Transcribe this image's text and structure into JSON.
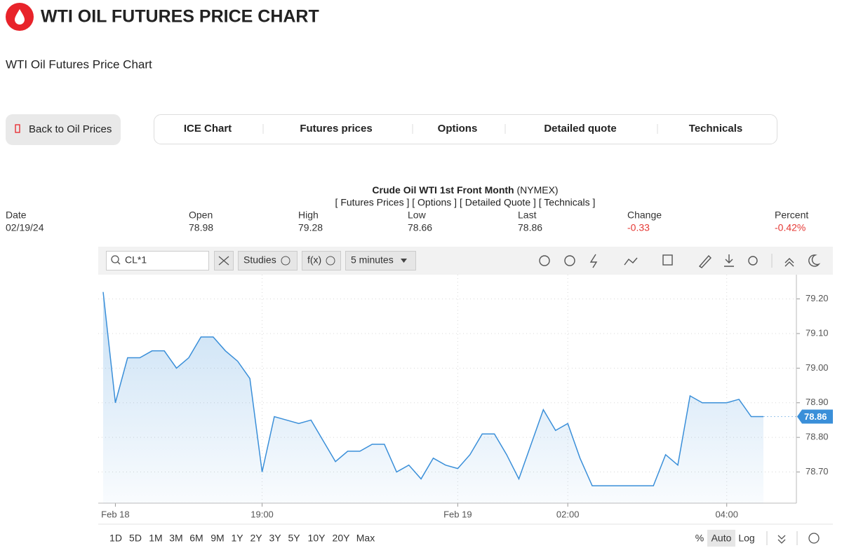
{
  "header": {
    "title": "WTI OIL FUTURES PRICE CHART",
    "subtitle": "WTI Oil Futures Price Chart"
  },
  "nav": {
    "back": "Back to Oil Prices",
    "tabs": [
      "ICE Chart",
      "Futures prices",
      "Options",
      "Detailed quote",
      "Technicals"
    ]
  },
  "quote": {
    "title": "Crude Oil WTI 1st Front Month",
    "exchange": "(NYMEX)",
    "links": "[ Futures Prices ] [ Options ] [ Detailed Quote ] [ Technicals ]",
    "fields": [
      {
        "label": "Date",
        "value": "02/19/24"
      },
      {
        "label": "Open",
        "value": "78.98"
      },
      {
        "label": "High",
        "value": "79.28"
      },
      {
        "label": "Low",
        "value": "78.66"
      },
      {
        "label": "Last",
        "value": "78.86"
      },
      {
        "label": "Change",
        "value": "-0.33"
      },
      {
        "label": "Percent",
        "value": "-0.42%"
      }
    ]
  },
  "toolbar": {
    "symbol": "CL*1",
    "studies": "Studies",
    "fx": "f(x)",
    "interval": "5 minutes"
  },
  "ranges": [
    "1D",
    "5D",
    "1M",
    "3M",
    "6M",
    "9M",
    "1Y",
    "2Y",
    "3Y",
    "5Y",
    "10Y",
    "20Y",
    "Max"
  ],
  "scale_options": [
    "%",
    "Auto",
    "Log"
  ],
  "chart_data": {
    "type": "area",
    "color": "#3a8fd9",
    "grid": true,
    "categories": [
      null,
      "Feb 18",
      null,
      null,
      null,
      null,
      null,
      null,
      null,
      null,
      null,
      null,
      null,
      "19:00",
      null,
      null,
      null,
      null,
      null,
      null,
      null,
      null,
      null,
      null,
      null,
      null,
      null,
      null,
      null,
      "Feb 19",
      null,
      null,
      null,
      null,
      null,
      null,
      null,
      null,
      "02:00",
      null,
      null,
      null,
      null,
      null,
      null,
      null,
      null,
      null,
      null,
      null,
      null,
      "04:00",
      null,
      null,
      null
    ],
    "values": [
      79.22,
      78.9,
      79.03,
      79.03,
      79.05,
      79.05,
      79.0,
      79.03,
      79.09,
      79.09,
      79.05,
      79.02,
      78.97,
      78.7,
      78.86,
      78.85,
      78.84,
      78.85,
      78.79,
      78.73,
      78.76,
      78.76,
      78.78,
      78.78,
      78.7,
      78.72,
      78.68,
      78.74,
      78.72,
      78.71,
      78.75,
      78.81,
      78.81,
      78.75,
      78.68,
      78.78,
      78.88,
      78.82,
      78.84,
      78.74,
      78.66,
      78.66,
      78.66,
      78.66,
      78.66,
      78.66,
      78.75,
      78.72,
      78.92,
      78.9,
      78.9,
      78.9,
      78.91,
      78.86,
      78.86
    ],
    "ylim": [
      78.61,
      79.27
    ],
    "yticks": [
      {
        "value": 78.7,
        "label": "78.70"
      },
      {
        "value": 78.8,
        "label": "78.80"
      },
      {
        "value": 78.9,
        "label": "78.90"
      },
      {
        "value": 79.0,
        "label": "79.00"
      },
      {
        "value": 79.1,
        "label": "79.10"
      },
      {
        "value": 79.2,
        "label": "79.20"
      }
    ]
  }
}
